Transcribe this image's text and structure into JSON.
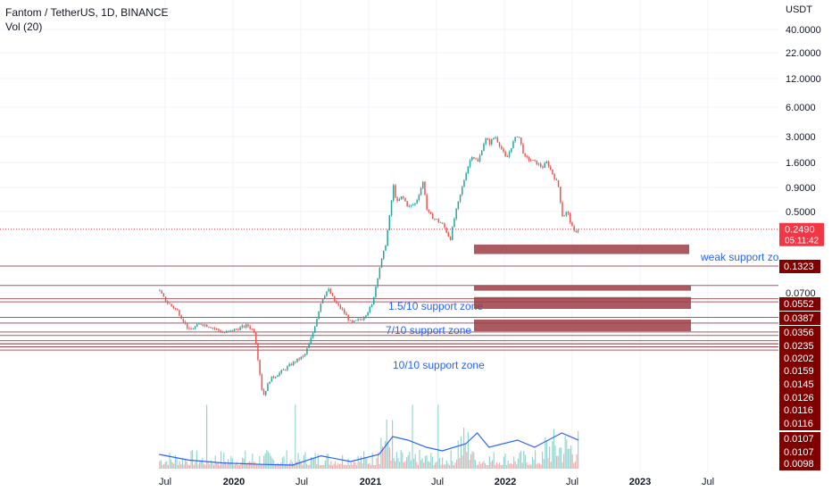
{
  "header": {
    "title": "Fantom / TetherUS, 1D, BINANCE",
    "volume_label": "Vol (20)"
  },
  "chart_data": {
    "type": "candlestick",
    "scale": "log",
    "y_unit": "USDT",
    "y_ticks": [
      "40.0000",
      "22.0000",
      "12.0000",
      "6.0000",
      "3.0000",
      "1.6000",
      "0.9000",
      "0.5000",
      "0.0700"
    ],
    "x_ticks": [
      "Jul",
      "2020",
      "Jul",
      "2021",
      "Jul",
      "2022",
      "Jul",
      "2023",
      "Jul"
    ],
    "current_price": {
      "label": "0.2490",
      "countdown": "05:11:42",
      "color": "#f23645"
    },
    "support_levels": [
      "0.1323",
      "0.0552",
      "0.0387",
      "0.0356",
      "0.0235",
      "0.0202",
      "0.0159",
      "0.0145",
      "0.0126",
      "0.0116",
      "0.0116",
      "0.0107",
      "0.0107",
      "0.0098"
    ],
    "zones": [
      {
        "label": "weak support zone",
        "top": 0.165,
        "bottom": 0.128
      },
      {
        "label": "1.5/10 support zone",
        "top": 0.0555,
        "bottom": 0.048
      },
      {
        "label": "7/10 support zone",
        "top": 0.0405,
        "bottom": 0.0295
      },
      {
        "label": "10/10 support zone",
        "top": 0.0222,
        "bottom": 0.0162
      }
    ],
    "price_path": [
      [
        "2019-06-15",
        0.047
      ],
      [
        "2019-07-01",
        0.036
      ],
      [
        "2019-08-01",
        0.028
      ],
      [
        "2019-09-01",
        0.0165
      ],
      [
        "2019-10-01",
        0.02
      ],
      [
        "2019-11-01",
        0.018
      ],
      [
        "2019-12-01",
        0.0155
      ],
      [
        "2020-01-01",
        0.017
      ],
      [
        "2020-02-01",
        0.019
      ],
      [
        "2020-02-20",
        0.016
      ],
      [
        "2020-03-13",
        0.0028
      ],
      [
        "2020-04-01",
        0.0045
      ],
      [
        "2020-05-01",
        0.0055
      ],
      [
        "2020-06-01",
        0.007
      ],
      [
        "2020-07-01",
        0.0085
      ],
      [
        "2020-07-20",
        0.014
      ],
      [
        "2020-08-01",
        0.022
      ],
      [
        "2020-08-15",
        0.038
      ],
      [
        "2020-09-01",
        0.05
      ],
      [
        "2020-09-20",
        0.035
      ],
      [
        "2020-10-10",
        0.028
      ],
      [
        "2020-11-01",
        0.02
      ],
      [
        "2020-12-01",
        0.023
      ],
      [
        "2020-12-25",
        0.032
      ],
      [
        "2021-01-15",
        0.09
      ],
      [
        "2021-01-30",
        0.16
      ],
      [
        "2021-02-10",
        0.35
      ],
      [
        "2021-02-20",
        0.8
      ],
      [
        "2021-03-01",
        0.5
      ],
      [
        "2021-03-15",
        0.6
      ],
      [
        "2021-04-01",
        0.45
      ],
      [
        "2021-04-20",
        0.5
      ],
      [
        "2021-05-10",
        0.9
      ],
      [
        "2021-05-20",
        0.4
      ],
      [
        "2021-06-01",
        0.35
      ],
      [
        "2021-07-01",
        0.28
      ],
      [
        "2021-07-20",
        0.19
      ],
      [
        "2021-08-01",
        0.35
      ],
      [
        "2021-09-01",
        1.2
      ],
      [
        "2021-09-15",
        1.8
      ],
      [
        "2021-10-01",
        1.5
      ],
      [
        "2021-10-20",
        2.8
      ],
      [
        "2021-11-01",
        2.5
      ],
      [
        "2021-11-15",
        3.0
      ],
      [
        "2021-12-01",
        2.2
      ],
      [
        "2021-12-15",
        1.6
      ],
      [
        "2022-01-01",
        2.5
      ],
      [
        "2022-01-15",
        3.2
      ],
      [
        "2022-02-01",
        1.7
      ],
      [
        "2022-03-01",
        1.5
      ],
      [
        "2022-03-20",
        1.3
      ],
      [
        "2022-04-01",
        1.5
      ],
      [
        "2022-05-01",
        0.8
      ],
      [
        "2022-05-12",
        0.35
      ],
      [
        "2022-05-25",
        0.4
      ],
      [
        "2022-06-10",
        0.23
      ],
      [
        "2022-06-25",
        0.249
      ]
    ],
    "volume_ma": [
      [
        "2019-06-15",
        0.2
      ],
      [
        "2019-09-01",
        0.12
      ],
      [
        "2019-12-01",
        0.08
      ],
      [
        "2020-03-13",
        0.06
      ],
      [
        "2020-06-01",
        0.05
      ],
      [
        "2020-08-15",
        0.18
      ],
      [
        "2020-11-01",
        0.1
      ],
      [
        "2021-01-15",
        0.2
      ],
      [
        "2021-02-20",
        0.45
      ],
      [
        "2021-04-01",
        0.4
      ],
      [
        "2021-05-20",
        0.3
      ],
      [
        "2021-07-01",
        0.25
      ],
      [
        "2021-09-01",
        0.35
      ],
      [
        "2021-10-01",
        0.5
      ],
      [
        "2021-11-01",
        0.3
      ],
      [
        "2022-01-15",
        0.4
      ],
      [
        "2022-03-01",
        0.3
      ],
      [
        "2022-05-12",
        0.5
      ],
      [
        "2022-06-25",
        0.4
      ]
    ]
  },
  "colors": {
    "up": "#26a69a",
    "down": "#ef5350",
    "zone": "#9c3d45",
    "level": "#9c3d45",
    "zone_text": "#2962ff"
  }
}
